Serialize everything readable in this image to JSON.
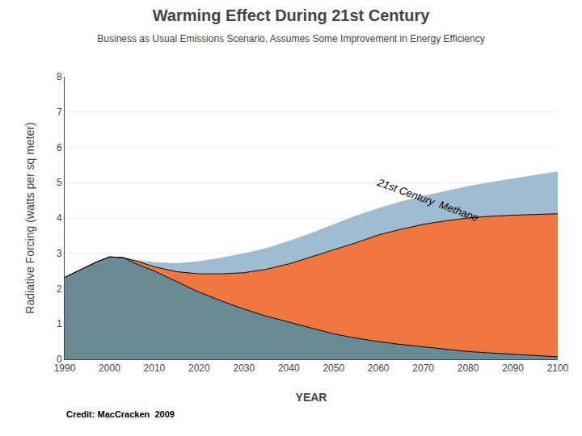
{
  "chart_data": {
    "type": "area",
    "title": "Warming Effect During 21st Century",
    "subtitle": "Business as Usual Emissions Scenario, Assumes Some Improvement in Energy Efficiency",
    "xlabel": "YEAR",
    "ylabel": "Radiative Forcing (watts per sq meter)",
    "x": [
      1990,
      1993,
      1997,
      2000,
      2003,
      2006,
      2010,
      2015,
      2020,
      2025,
      2030,
      2035,
      2040,
      2045,
      2050,
      2055,
      2060,
      2065,
      2070,
      2075,
      2080,
      2085,
      2090,
      2095,
      2100
    ],
    "series": [
      {
        "color": "#6a8a94",
        "values": [
          2.32,
          2.5,
          2.75,
          2.9,
          2.88,
          2.7,
          2.5,
          2.2,
          1.9,
          1.65,
          1.42,
          1.22,
          1.05,
          0.88,
          0.72,
          0.6,
          0.5,
          0.42,
          0.35,
          0.28,
          0.22,
          0.18,
          0.14,
          0.1,
          0.07
        ]
      },
      {
        "color": "#f07840",
        "values": [
          2.32,
          2.5,
          2.75,
          2.9,
          2.88,
          2.78,
          2.62,
          2.48,
          2.42,
          2.42,
          2.45,
          2.55,
          2.7,
          2.9,
          3.1,
          3.3,
          3.52,
          3.68,
          3.82,
          3.92,
          4.0,
          4.05,
          4.08,
          4.1,
          4.12
        ]
      },
      {
        "color": "#a0bcd0",
        "values": [
          2.32,
          2.5,
          2.75,
          2.9,
          2.88,
          2.82,
          2.75,
          2.72,
          2.78,
          2.88,
          3.0,
          3.15,
          3.35,
          3.58,
          3.82,
          4.07,
          4.28,
          4.47,
          4.63,
          4.77,
          4.9,
          5.02,
          5.12,
          5.22,
          5.32
        ]
      }
    ],
    "xlim": [
      1990,
      2100
    ],
    "ylim": [
      0,
      8
    ],
    "xticks": [
      1990,
      2000,
      2010,
      2020,
      2030,
      2040,
      2050,
      2060,
      2070,
      2080,
      2090,
      2100
    ],
    "yticks": [
      0,
      1,
      2,
      3,
      4,
      5,
      6,
      7,
      8
    ],
    "grid": true,
    "annotations": [
      {
        "text": "21st Century  Methane",
        "x": 2071,
        "y": 4.52
      },
      {
        "text": "Credit: MacCracken  2009"
      }
    ]
  }
}
